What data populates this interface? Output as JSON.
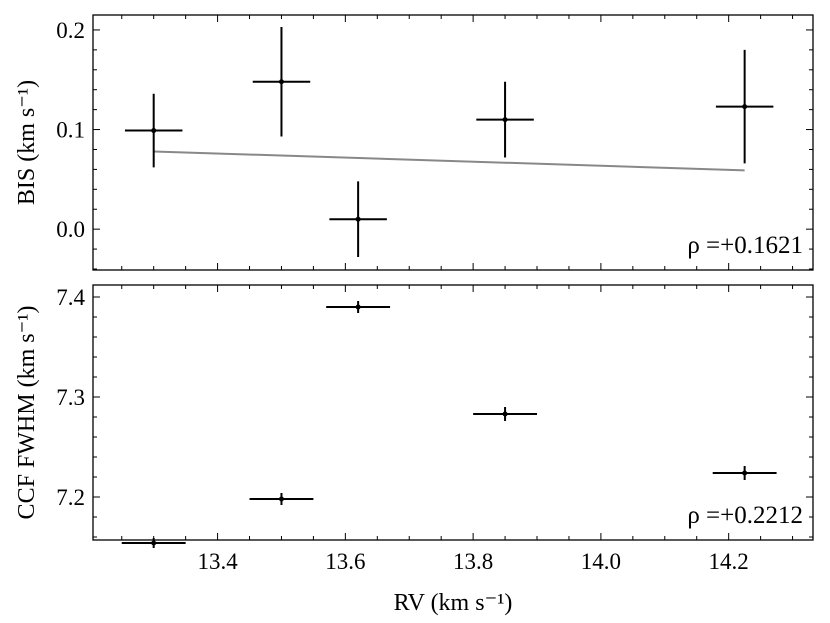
{
  "chart_data": [
    {
      "type": "scatter",
      "panel": "top",
      "ylabel": "BIS (km s⁻¹)",
      "ylim": [
        -0.041,
        0.215
      ],
      "xlim": [
        13.205,
        14.332
      ],
      "yticks": [
        0.0,
        0.1,
        0.2
      ],
      "ytick_labels": [
        "0.0",
        "0.1",
        "0.2"
      ],
      "x": [
        13.3,
        13.5,
        13.62,
        13.85,
        14.225
      ],
      "y": [
        0.099,
        0.148,
        0.01,
        0.11,
        0.123
      ],
      "xerr": [
        0.045,
        0.045,
        0.045,
        0.045,
        0.045
      ],
      "yerr": [
        0.037,
        0.055,
        0.038,
        0.038,
        0.057
      ],
      "fit_line": {
        "x": [
          13.3,
          14.225
        ],
        "y": [
          0.078,
          0.059
        ],
        "color": "#888888"
      },
      "annotation": "ρ =+0.1621",
      "grid": false
    },
    {
      "type": "scatter",
      "panel": "bottom",
      "xlabel": "RV (km s⁻¹)",
      "ylabel": "CCF FWHM (km s⁻¹)",
      "ylim": [
        7.157,
        7.412
      ],
      "xlim": [
        13.205,
        14.332
      ],
      "xticks": [
        13.4,
        13.6,
        13.8,
        14.0,
        14.2
      ],
      "xtick_labels": [
        "13.4",
        "13.6",
        "13.8",
        "14.0",
        "14.2"
      ],
      "yticks": [
        7.2,
        7.3,
        7.4
      ],
      "ytick_labels": [
        "7.2",
        "7.3",
        "7.4"
      ],
      "x": [
        13.3,
        13.5,
        13.62,
        13.85,
        14.225
      ],
      "y": [
        7.154,
        7.198,
        7.39,
        7.283,
        7.224
      ],
      "xerr": [
        0.05,
        0.05,
        0.05,
        0.05,
        0.05
      ],
      "yerr": [
        0.005,
        0.006,
        0.006,
        0.007,
        0.007
      ],
      "annotation": "ρ =+0.2212",
      "grid": false
    }
  ]
}
